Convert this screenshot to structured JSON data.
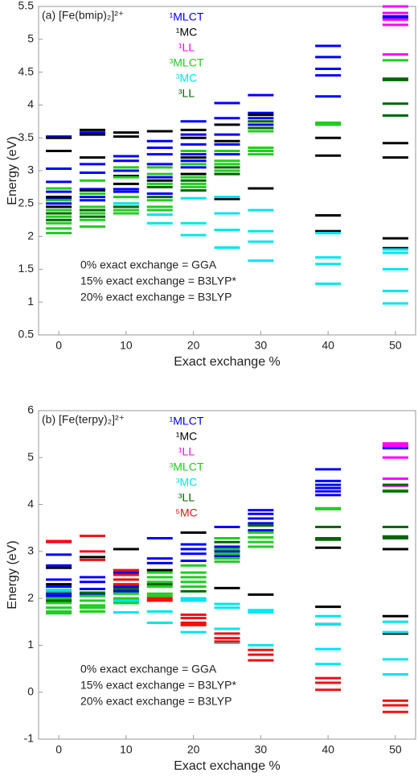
{
  "chart_data": [
    {
      "type": "levels",
      "title": "(a) [Fe(bmip)₂]²⁺",
      "xlabel": "Exact exchange %",
      "ylabel": "Energy (eV)",
      "xlim": [
        -3,
        53
      ],
      "xticks": [
        0,
        10,
        20,
        30,
        40,
        50
      ],
      "ylim": [
        0.5,
        5.5
      ],
      "yticks": [
        0.5,
        1,
        1.5,
        2,
        2.5,
        3,
        3.5,
        4,
        4.5,
        5,
        5.5
      ],
      "annotations": [
        "0% exact exchange = GGA",
        "15% exact exchange = B3LYP*",
        "20% exact exchange = B3LYP"
      ],
      "series": [
        {
          "name": "¹MLCT",
          "color": "#0000ff",
          "x": [
            0,
            0,
            0,
            0,
            0,
            0,
            5,
            5,
            5,
            5,
            5,
            5,
            10,
            10,
            10,
            10,
            10,
            15,
            15,
            15,
            15,
            15,
            15,
            20,
            20,
            20,
            20,
            20,
            20,
            25,
            25,
            25,
            25,
            25,
            30,
            30,
            30,
            30,
            40,
            40,
            40,
            40,
            40,
            50,
            50
          ],
          "values": [
            3.52,
            3.03,
            2.83,
            2.68,
            2.58,
            2.5,
            3.58,
            3.1,
            2.97,
            2.72,
            2.6,
            2.55,
            3.22,
            3.15,
            3.0,
            2.72,
            2.68,
            3.45,
            3.35,
            3.25,
            3.1,
            2.9,
            2.65,
            3.75,
            3.55,
            3.4,
            3.25,
            3.15,
            3.05,
            4.03,
            3.8,
            3.55,
            3.4,
            3.25,
            4.15,
            3.88,
            3.8,
            3.7,
            4.9,
            4.73,
            4.55,
            4.45,
            4.13,
            5.33,
            5.35
          ]
        },
        {
          "name": "¹MC",
          "color": "#000000",
          "x": [
            0,
            0,
            0,
            0,
            5,
            5,
            5,
            5,
            10,
            10,
            10,
            10,
            15,
            15,
            20,
            20,
            20,
            20,
            25,
            25,
            25,
            30,
            30,
            40,
            40,
            40,
            40,
            50,
            50,
            50,
            50
          ],
          "values": [
            3.5,
            3.3,
            2.6,
            2.45,
            3.62,
            3.55,
            3.2,
            2.7,
            3.58,
            3.52,
            2.92,
            2.8,
            3.6,
            2.85,
            3.62,
            3.5,
            3.2,
            2.95,
            3.7,
            3.45,
            2.57,
            3.85,
            2.73,
            3.5,
            3.23,
            2.32,
            2.08,
            3.42,
            3.2,
            1.97,
            1.82
          ]
        },
        {
          "name": "¹LL",
          "color": "#ff00ff",
          "x": [
            50,
            50,
            50,
            50,
            50
          ],
          "values": [
            5.5,
            5.4,
            5.3,
            5.22,
            4.77
          ]
        },
        {
          "name": "³MLCT",
          "color": "#22cc22",
          "x": [
            0,
            0,
            0,
            0,
            0,
            0,
            0,
            5,
            5,
            5,
            5,
            5,
            5,
            10,
            10,
            10,
            10,
            10,
            10,
            15,
            15,
            15,
            15,
            15,
            15,
            20,
            20,
            20,
            20,
            20,
            20,
            25,
            25,
            25,
            25,
            25,
            30,
            30,
            30,
            30,
            40,
            40,
            50
          ],
          "values": [
            2.73,
            2.55,
            2.4,
            2.3,
            2.2,
            2.12,
            2.05,
            2.85,
            2.65,
            2.45,
            2.35,
            2.25,
            2.15,
            3.05,
            2.9,
            2.6,
            2.5,
            2.4,
            2.35,
            3.05,
            2.95,
            2.8,
            2.55,
            2.45,
            2.4,
            3.3,
            3.1,
            2.9,
            2.8,
            2.7,
            2.75,
            3.3,
            3.15,
            3.1,
            3.0,
            2.95,
            3.6,
            3.35,
            3.3,
            3.25,
            3.73,
            3.7,
            4.68
          ]
        },
        {
          "name": "³MC",
          "color": "#00e5ee",
          "x": [
            10,
            15,
            15,
            20,
            20,
            20,
            25,
            25,
            25,
            25,
            30,
            30,
            30,
            30,
            40,
            40,
            40,
            40,
            50,
            50,
            50,
            50,
            50
          ],
          "values": [
            2.5,
            2.33,
            2.2,
            2.58,
            2.2,
            2.02,
            2.6,
            2.35,
            2.1,
            1.83,
            2.4,
            2.08,
            1.92,
            1.63,
            2.05,
            1.68,
            1.58,
            1.28,
            1.8,
            1.75,
            1.5,
            1.17,
            0.98
          ]
        },
        {
          "name": "³LL",
          "color": "#006600",
          "x": [
            0,
            0,
            5,
            5,
            10,
            15,
            15,
            20,
            20,
            25,
            25,
            30,
            30,
            50,
            50,
            50,
            50
          ],
          "values": [
            2.35,
            2.25,
            2.4,
            2.3,
            2.45,
            2.75,
            2.6,
            2.85,
            2.7,
            3.05,
            2.95,
            3.75,
            3.65,
            4.38,
            4.4,
            4.02,
            3.84
          ]
        }
      ]
    },
    {
      "type": "levels",
      "title": "(b) [Fe(terpy)₂]²⁺",
      "xlabel": "Exact exchange %",
      "ylabel": "Energy (eV)",
      "xlim": [
        -3,
        53
      ],
      "xticks": [
        0,
        10,
        20,
        30,
        40,
        50
      ],
      "ylim": [
        -1,
        6
      ],
      "yticks": [
        -1,
        0,
        1,
        2,
        3,
        4,
        5,
        6
      ],
      "annotations": [
        "0% exact exchange = GGA",
        "15% exact exchange = B3LYP*",
        "20% exact exchange = B3LYP"
      ],
      "series": [
        {
          "name": "¹MLCT",
          "color": "#0000ff",
          "x": [
            0,
            0,
            0,
            0,
            0,
            0,
            5,
            5,
            5,
            5,
            10,
            10,
            10,
            15,
            15,
            15,
            20,
            20,
            20,
            20,
            25,
            25,
            25,
            25,
            30,
            30,
            30,
            30,
            30,
            40,
            40,
            40,
            40,
            40,
            40,
            50,
            50
          ],
          "values": [
            2.93,
            2.7,
            2.4,
            2.25,
            2.1,
            2.05,
            2.45,
            2.35,
            2.2,
            2.1,
            2.55,
            2.25,
            2.15,
            3.28,
            2.85,
            2.75,
            3.15,
            3.05,
            2.95,
            2.8,
            3.52,
            3.1,
            3.0,
            2.9,
            3.88,
            3.8,
            3.7,
            3.6,
            3.45,
            4.75,
            4.5,
            4.42,
            4.35,
            4.28,
            4.2,
            5.25,
            5.2
          ]
        },
        {
          "name": "¹MC",
          "color": "#000000",
          "x": [
            0,
            0,
            5,
            10,
            15,
            20,
            25,
            30,
            40,
            40,
            40,
            50,
            50,
            50
          ],
          "values": [
            2.65,
            2.3,
            2.88,
            3.05,
            2.6,
            3.4,
            2.22,
            2.08,
            3.08,
            1.82,
            1.45,
            3.05,
            1.62,
            1.25
          ]
        },
        {
          "name": "¹LL",
          "color": "#ff00ff",
          "x": [
            50,
            50,
            50,
            50,
            50
          ],
          "values": [
            5.3,
            5.25,
            5.0,
            4.55,
            4.4
          ]
        },
        {
          "name": "³MLCT",
          "color": "#22cc22",
          "x": [
            0,
            0,
            0,
            0,
            0,
            0,
            5,
            5,
            5,
            5,
            5,
            10,
            10,
            10,
            10,
            10,
            15,
            15,
            15,
            15,
            15,
            15,
            20,
            20,
            20,
            20,
            20,
            25,
            25,
            25,
            25,
            25,
            30,
            30,
            30,
            30,
            40,
            40,
            50
          ],
          "values": [
            2.15,
            2.0,
            1.9,
            1.8,
            1.72,
            1.68,
            2.05,
            1.95,
            1.85,
            1.8,
            1.72,
            2.4,
            2.1,
            2.0,
            1.95,
            1.9,
            2.55,
            2.45,
            2.35,
            2.25,
            2.1,
            2.05,
            2.7,
            2.55,
            2.45,
            2.35,
            2.25,
            3.28,
            3.05,
            2.95,
            2.85,
            2.78,
            3.4,
            3.3,
            3.2,
            3.1,
            3.92,
            3.9,
            4.3
          ]
        },
        {
          "name": "³MC",
          "color": "#00e5ee",
          "x": [
            0,
            10,
            10,
            15,
            15,
            20,
            20,
            20,
            25,
            25,
            25,
            25,
            30,
            30,
            30,
            40,
            40,
            40,
            40,
            50,
            50,
            50,
            50
          ],
          "values": [
            2.18,
            1.95,
            1.7,
            1.72,
            1.48,
            2.0,
            1.95,
            1.28,
            1.88,
            1.8,
            1.35,
            1.05,
            1.75,
            1.7,
            1.0,
            1.62,
            1.45,
            0.92,
            0.6,
            1.5,
            1.28,
            0.7,
            0.38
          ]
        },
        {
          "name": "³LL",
          "color": "#006600",
          "x": [
            0,
            5,
            10,
            15,
            20,
            25,
            30,
            40,
            40,
            40,
            50,
            50,
            50,
            50,
            50
          ],
          "values": [
            1.95,
            2.12,
            2.2,
            2.3,
            2.15,
            3.2,
            3.55,
            3.52,
            3.28,
            3.25,
            4.42,
            4.28,
            3.52,
            3.32,
            3.28
          ]
        },
        {
          "name": "⁵MC",
          "color": "#ee1111",
          "x": [
            0,
            0,
            5,
            5,
            5,
            10,
            10,
            10,
            10,
            15,
            15,
            20,
            20,
            20,
            20,
            25,
            25,
            25,
            30,
            30,
            30,
            40,
            40,
            40,
            50,
            50,
            50
          ],
          "values": [
            3.22,
            3.2,
            3.33,
            3.0,
            2.82,
            2.6,
            2.5,
            2.4,
            2.3,
            2.0,
            1.95,
            1.65,
            1.58,
            1.48,
            1.43,
            1.25,
            1.15,
            1.08,
            0.9,
            0.8,
            0.68,
            0.3,
            0.2,
            0.05,
            -0.18,
            -0.28,
            -0.42
          ]
        }
      ]
    }
  ]
}
